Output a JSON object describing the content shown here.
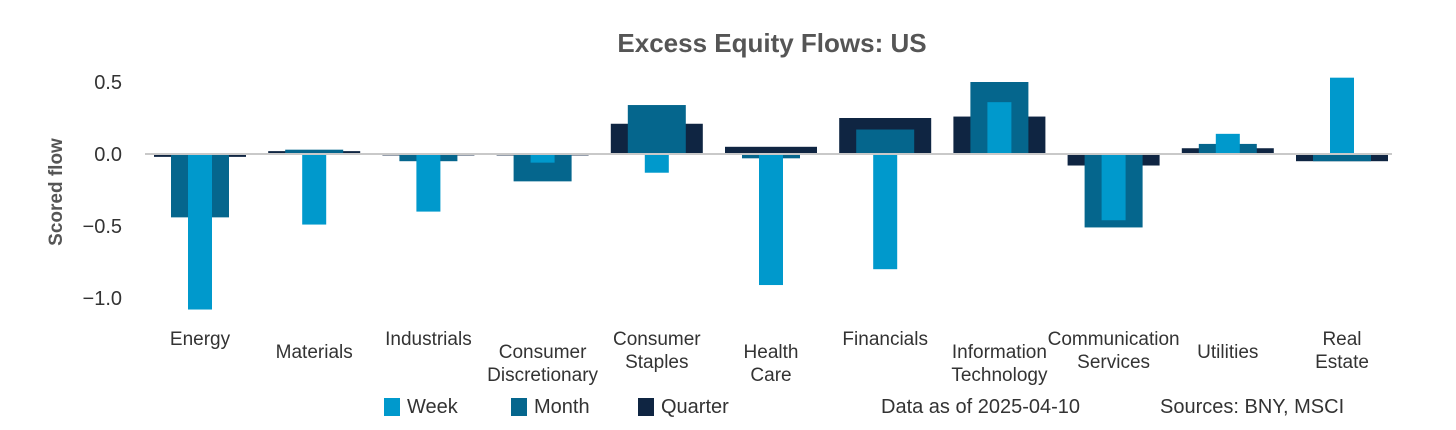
{
  "chart_data": {
    "type": "bar",
    "title": "Excess Equity Flows:  US",
    "ylabel": "Scored flow",
    "xlabel": "",
    "ylim": [
      -1.1,
      0.55
    ],
    "yticks": [
      0.5,
      0.0,
      -0.5,
      -1.0
    ],
    "ytick_labels": [
      "0.5",
      "0.0",
      "−0.5",
      "−1.0"
    ],
    "grid": false,
    "categories": [
      "Energy",
      "Materials",
      "Industrials",
      "Consumer Discretionary",
      "Consumer Staples",
      "Health Care",
      "Financials",
      "Information Technology",
      "Communication Services",
      "Utilities",
      "Real Estate"
    ],
    "category_lines": [
      [
        "Energy"
      ],
      [
        "Materials"
      ],
      [
        "Industrials"
      ],
      [
        "Consumer",
        "Discretionary"
      ],
      [
        "Consumer",
        "Staples"
      ],
      [
        "Health",
        "Care"
      ],
      [
        "Financials"
      ],
      [
        "Information",
        "Technology"
      ],
      [
        "Communication",
        "Services"
      ],
      [
        "Utilities"
      ],
      [
        "Real",
        "Estate"
      ]
    ],
    "series": [
      {
        "name": "Quarter",
        "color": "#0f2542",
        "values": [
          -0.02,
          0.02,
          -0.01,
          -0.01,
          0.21,
          0.05,
          0.25,
          0.26,
          -0.08,
          0.04,
          -0.05
        ]
      },
      {
        "name": "Month",
        "color": "#05668d",
        "values": [
          -0.44,
          0.03,
          -0.05,
          -0.19,
          0.34,
          -0.03,
          0.17,
          0.5,
          -0.51,
          0.07,
          -0.05
        ]
      },
      {
        "name": "Week",
        "color": "#0099cc",
        "values": [
          -1.08,
          -0.49,
          -0.4,
          -0.06,
          -0.13,
          -0.91,
          -0.8,
          0.36,
          -0.46,
          0.14,
          0.53
        ]
      }
    ],
    "legend": {
      "placement": "bottom",
      "order": [
        "Week",
        "Month",
        "Quarter"
      ]
    },
    "annotations": {
      "date_note": "Data as of 2025-04-10",
      "source_note": "Sources:  BNY, MSCI"
    }
  }
}
